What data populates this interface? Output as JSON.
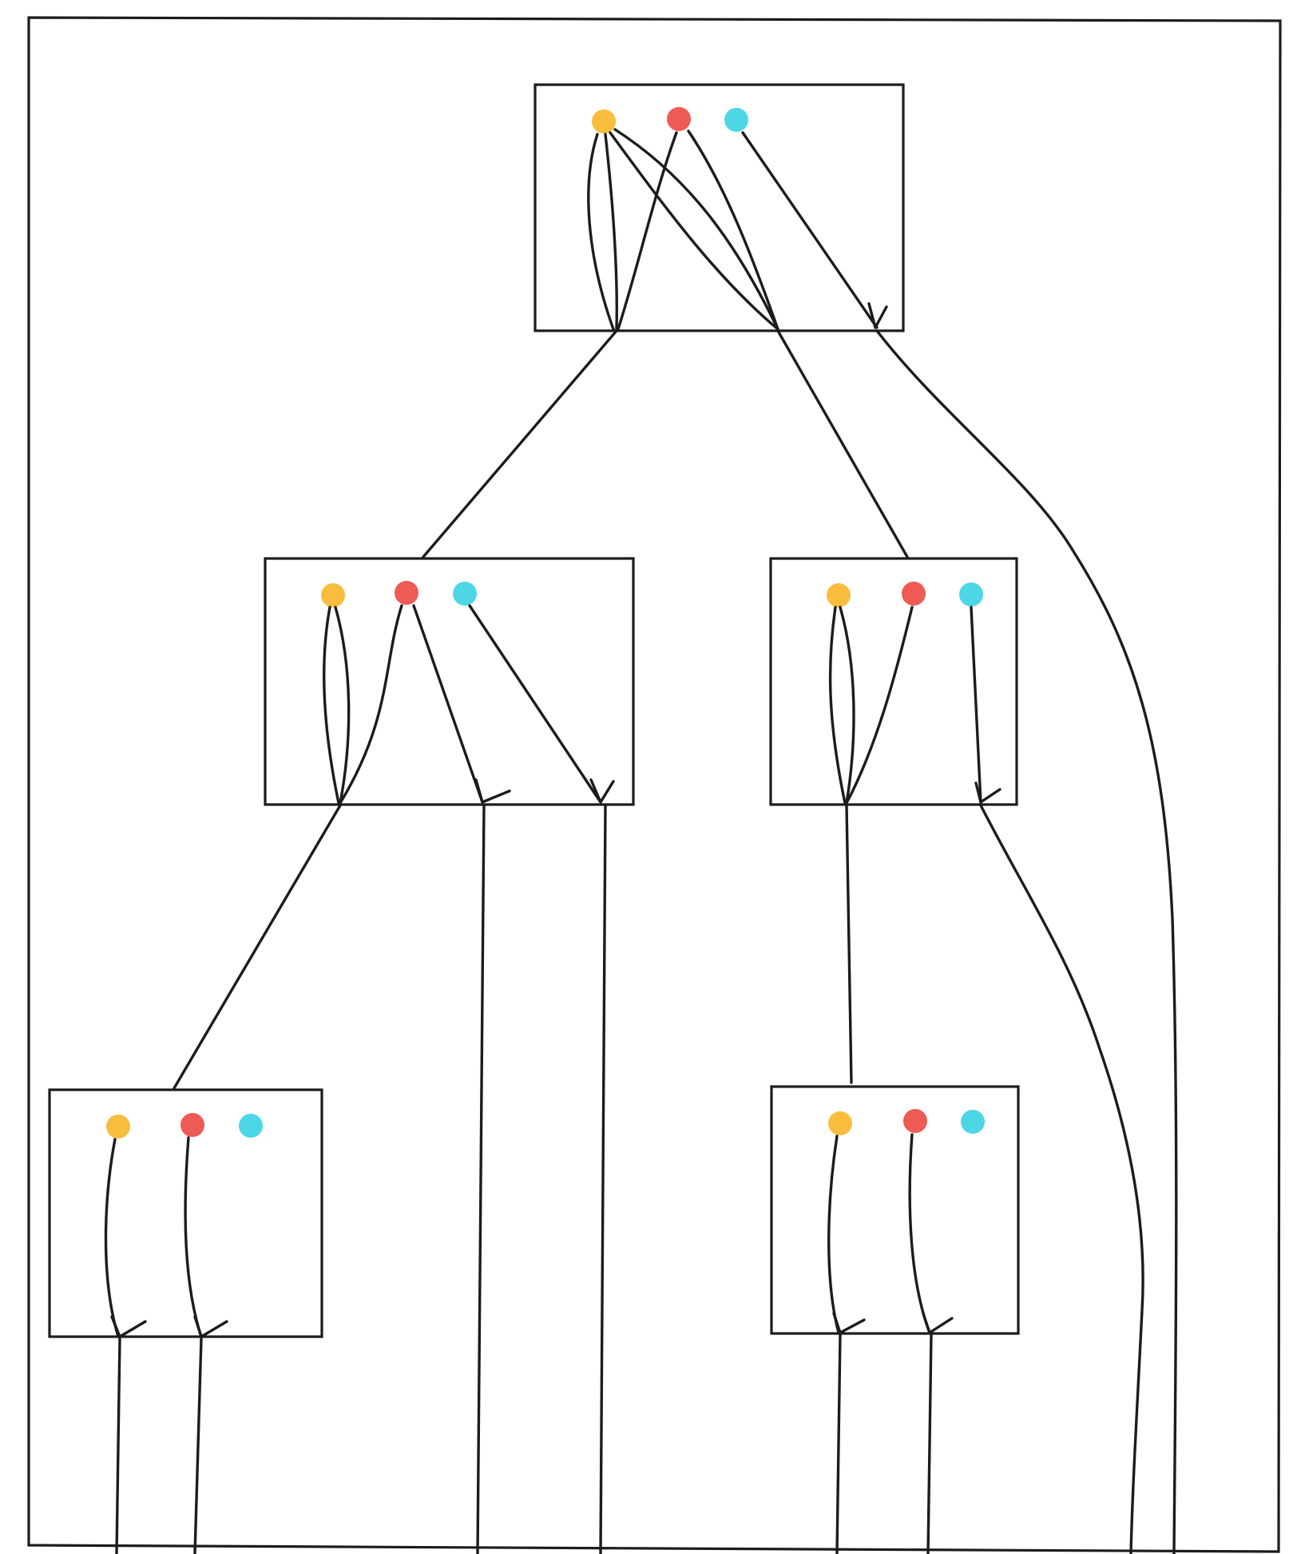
{
  "colors": {
    "ink": "#1c1c1c",
    "background": "#ffffff",
    "yellow_dot": "#f8bd3c",
    "red_dot": "#ee5b55",
    "cyan_dot": "#4dd7e6"
  },
  "diagram": {
    "boxes": [
      {
        "id": "box-root",
        "dots": [
          "yellow_dot",
          "red_dot",
          "cyan_dot"
        ]
      },
      {
        "id": "box-middle-left",
        "dots": [
          "yellow_dot",
          "red_dot",
          "cyan_dot"
        ]
      },
      {
        "id": "box-middle-right",
        "dots": [
          "yellow_dot",
          "red_dot",
          "cyan_dot"
        ]
      },
      {
        "id": "box-bottom-left",
        "dots": [
          "yellow_dot",
          "red_dot",
          "cyan_dot"
        ]
      },
      {
        "id": "box-bottom-right",
        "dots": [
          "yellow_dot",
          "red_dot",
          "cyan_dot"
        ]
      }
    ]
  }
}
